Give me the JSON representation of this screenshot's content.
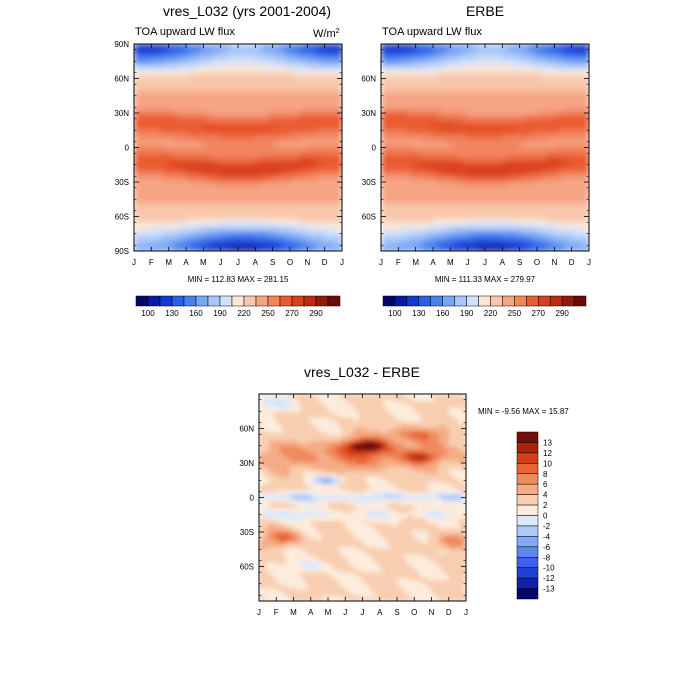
{
  "chart_data": [
    {
      "type": "heatmap",
      "id": "model",
      "title": "vres_L032 (yrs 2001-2004)",
      "subtitle_left": "TOA upward LW flux",
      "units_base": "W/m",
      "units_exp": "2",
      "months": [
        "J",
        "F",
        "M",
        "A",
        "M",
        "J",
        "J",
        "A",
        "S",
        "O",
        "N",
        "D",
        "J"
      ],
      "y_ticks": [
        "90N",
        "60N",
        "30N",
        "0",
        "30S",
        "60S",
        "90S"
      ],
      "minmax": "MIN = 112.83 MAX = 281.15",
      "min": 112.83,
      "max": 281.15,
      "colorbar_labels": [
        "100",
        "130",
        "160",
        "190",
        "220",
        "250",
        "270",
        "290"
      ]
    },
    {
      "type": "heatmap",
      "id": "erbe",
      "title": "ERBE",
      "subtitle_left": "TOA upward LW flux",
      "months": [
        "J",
        "F",
        "M",
        "A",
        "M",
        "J",
        "J",
        "A",
        "S",
        "O",
        "N",
        "D",
        "J"
      ],
      "y_ticks": [
        "",
        "60N",
        "30N",
        "0",
        "30S",
        "60S",
        ""
      ],
      "minmax": "MIN = 111.33 MAX = 279.97",
      "min": 111.33,
      "max": 279.97,
      "colorbar_labels": [
        "100",
        "130",
        "160",
        "190",
        "220",
        "250",
        "270",
        "290"
      ]
    },
    {
      "type": "heatmap",
      "id": "diff",
      "title": "vres_L032 - ERBE",
      "months": [
        "J",
        "F",
        "M",
        "A",
        "M",
        "J",
        "J",
        "A",
        "S",
        "O",
        "N",
        "D",
        "J"
      ],
      "y_ticks": [
        "",
        "60N",
        "30N",
        "0",
        "30S",
        "60S",
        ""
      ],
      "minmax": "MIN =  -9.56 MAX =  15.87",
      "min": -9.56,
      "max": 15.87,
      "colorbar_labels": [
        "13",
        "12",
        "10",
        "8",
        "6",
        "4",
        "2",
        "0",
        "-2",
        "-4",
        "-6",
        "-8",
        "-10",
        "-12",
        "-13"
      ]
    }
  ],
  "palettes": {
    "flux": [
      "#08056b",
      "#0a1aa8",
      "#1538d0",
      "#2a5ee8",
      "#4a80ee",
      "#7aa6f4",
      "#a8c6f8",
      "#d2e2fb",
      "#fbe6d6",
      "#f8c6aa",
      "#f5a484",
      "#f2845e",
      "#ea5c32",
      "#d8401c",
      "#bc2a12",
      "#96180a",
      "#6e0a04"
    ],
    "diff": [
      "#08056b",
      "#1020b0",
      "#2040d8",
      "#3a62ec",
      "#5a86f0",
      "#86a8f4",
      "#b0c8f8",
      "#dce8fc",
      "#fdebdc",
      "#f8ceb0",
      "#f5ac86",
      "#f08a5e",
      "#e86432",
      "#d2401a",
      "#a8220c",
      "#70100a"
    ]
  }
}
